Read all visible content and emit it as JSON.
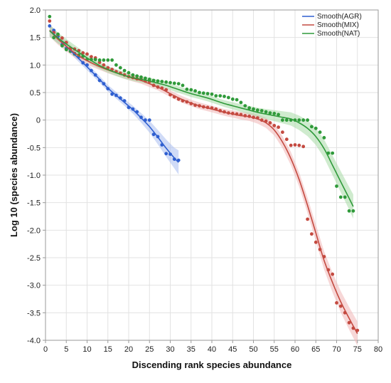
{
  "chart_data": {
    "type": "scatter",
    "xlabel": "Discending rank species abundance",
    "ylabel": "Log 10 (species abundance)",
    "xlim": [
      0,
      80
    ],
    "ylim": [
      -4.0,
      2.0
    ],
    "x_ticks": [
      0,
      5,
      10,
      15,
      20,
      25,
      30,
      35,
      40,
      45,
      50,
      55,
      60,
      65,
      70,
      75,
      80
    ],
    "y_ticks": [
      2.0,
      1.5,
      1.0,
      0.5,
      0,
      -0.5,
      -1.0,
      -1.5,
      -2.0,
      -2.5,
      -3.0,
      -3.5,
      -4.0
    ],
    "y_tick_labels": [
      "2.0",
      "1.5",
      "1.0",
      "0.5",
      "0",
      "-0.5",
      "-1.0",
      "-1.5",
      "-2.0",
      "-2.5",
      "-3.0",
      "-3.5",
      "-4.0"
    ],
    "grid": true,
    "legend_position": "top-right",
    "series": [
      {
        "name": "Smooth(AGR)",
        "color": "#2f5fd0",
        "band_color": "#a9bdf0",
        "points": [
          [
            1,
            1.71
          ],
          [
            2,
            1.63
          ],
          [
            3,
            1.52
          ],
          [
            4,
            1.37
          ],
          [
            5,
            1.3
          ],
          [
            6,
            1.3
          ],
          [
            7,
            1.21
          ],
          [
            8,
            1.15
          ],
          [
            9,
            1.04
          ],
          [
            10,
            1.0
          ],
          [
            11,
            0.9
          ],
          [
            12,
            0.82
          ],
          [
            13,
            0.72
          ],
          [
            14,
            0.66
          ],
          [
            15,
            0.57
          ],
          [
            16,
            0.47
          ],
          [
            17,
            0.45
          ],
          [
            18,
            0.4
          ],
          [
            19,
            0.35
          ],
          [
            20,
            0.23
          ],
          [
            21,
            0.2
          ],
          [
            22,
            0.15
          ],
          [
            23,
            0.05
          ],
          [
            24,
            0.0
          ],
          [
            25,
            0.0
          ],
          [
            26,
            -0.26
          ],
          [
            27,
            -0.3
          ],
          [
            28,
            -0.45
          ],
          [
            29,
            -0.61
          ],
          [
            30,
            -0.62
          ],
          [
            31,
            -0.71
          ],
          [
            32,
            -0.73
          ]
        ],
        "smooth": [
          [
            1,
            1.63
          ],
          [
            3,
            1.49
          ],
          [
            5,
            1.34
          ],
          [
            7,
            1.19
          ],
          [
            9,
            1.04
          ],
          [
            11,
            0.89
          ],
          [
            13,
            0.74
          ],
          [
            15,
            0.58
          ],
          [
            17,
            0.45
          ],
          [
            19,
            0.32
          ],
          [
            21,
            0.19
          ],
          [
            23,
            0.04
          ],
          [
            25,
            -0.12
          ],
          [
            27,
            -0.31
          ],
          [
            29,
            -0.51
          ],
          [
            31,
            -0.69
          ],
          [
            32,
            -0.77
          ]
        ]
      },
      {
        "name": "Smooth(MIX)",
        "color": "#c44a40",
        "band_color": "#f0b6b6",
        "points": [
          [
            1,
            1.8
          ],
          [
            2,
            1.59
          ],
          [
            3,
            1.55
          ],
          [
            4,
            1.49
          ],
          [
            5,
            1.41
          ],
          [
            6,
            1.3
          ],
          [
            7,
            1.29
          ],
          [
            8,
            1.26
          ],
          [
            9,
            1.22
          ],
          [
            10,
            1.2
          ],
          [
            11,
            1.15
          ],
          [
            12,
            1.13
          ],
          [
            13,
            1.05
          ],
          [
            14,
            1.0
          ],
          [
            15,
            0.95
          ],
          [
            16,
            0.92
          ],
          [
            17,
            0.88
          ],
          [
            18,
            0.85
          ],
          [
            19,
            0.82
          ],
          [
            20,
            0.79
          ],
          [
            21,
            0.77
          ],
          [
            22,
            0.75
          ],
          [
            23,
            0.74
          ],
          [
            24,
            0.71
          ],
          [
            25,
            0.7
          ],
          [
            26,
            0.63
          ],
          [
            27,
            0.6
          ],
          [
            28,
            0.58
          ],
          [
            29,
            0.55
          ],
          [
            30,
            0.46
          ],
          [
            31,
            0.42
          ],
          [
            32,
            0.38
          ],
          [
            33,
            0.35
          ],
          [
            34,
            0.33
          ],
          [
            35,
            0.3
          ],
          [
            36,
            0.27
          ],
          [
            37,
            0.26
          ],
          [
            38,
            0.24
          ],
          [
            39,
            0.23
          ],
          [
            40,
            0.22
          ],
          [
            41,
            0.2
          ],
          [
            42,
            0.17
          ],
          [
            43,
            0.15
          ],
          [
            44,
            0.13
          ],
          [
            45,
            0.12
          ],
          [
            46,
            0.11
          ],
          [
            47,
            0.1
          ],
          [
            48,
            0.08
          ],
          [
            49,
            0.07
          ],
          [
            50,
            0.05
          ],
          [
            51,
            0.04
          ],
          [
            52,
            0.0
          ],
          [
            53,
            -0.02
          ],
          [
            54,
            -0.05
          ],
          [
            55,
            -0.1
          ],
          [
            56,
            -0.13
          ],
          [
            57,
            -0.22
          ],
          [
            58,
            -0.35
          ],
          [
            59,
            -0.46
          ],
          [
            60,
            -0.45
          ],
          [
            61,
            -0.46
          ],
          [
            62,
            -0.48
          ],
          [
            63,
            -1.8
          ],
          [
            64,
            -2.07
          ],
          [
            65,
            -2.22
          ],
          [
            66,
            -2.35
          ],
          [
            67,
            -2.48
          ],
          [
            68,
            -2.72
          ],
          [
            69,
            -2.8
          ],
          [
            70,
            -3.32
          ],
          [
            71,
            -3.38
          ],
          [
            72,
            -3.5
          ],
          [
            73,
            -3.68
          ],
          [
            74,
            -3.78
          ],
          [
            75,
            -3.82
          ]
        ],
        "smooth": [
          [
            1,
            1.63
          ],
          [
            3,
            1.47
          ],
          [
            5,
            1.34
          ],
          [
            7,
            1.22
          ],
          [
            9,
            1.12
          ],
          [
            11,
            1.04
          ],
          [
            13,
            0.97
          ],
          [
            15,
            0.91
          ],
          [
            17,
            0.86
          ],
          [
            19,
            0.81
          ],
          [
            21,
            0.76
          ],
          [
            23,
            0.72
          ],
          [
            25,
            0.66
          ],
          [
            27,
            0.6
          ],
          [
            29,
            0.52
          ],
          [
            31,
            0.44
          ],
          [
            33,
            0.37
          ],
          [
            35,
            0.31
          ],
          [
            37,
            0.26
          ],
          [
            39,
            0.22
          ],
          [
            41,
            0.18
          ],
          [
            43,
            0.14
          ],
          [
            45,
            0.11
          ],
          [
            47,
            0.08
          ],
          [
            49,
            0.06
          ],
          [
            51,
            0.02
          ],
          [
            53,
            -0.05
          ],
          [
            55,
            -0.18
          ],
          [
            57,
            -0.4
          ],
          [
            59,
            -0.7
          ],
          [
            61,
            -1.08
          ],
          [
            63,
            -1.55
          ],
          [
            65,
            -2.05
          ],
          [
            67,
            -2.55
          ],
          [
            69,
            -2.95
          ],
          [
            71,
            -3.3
          ],
          [
            73,
            -3.6
          ],
          [
            75,
            -3.88
          ]
        ]
      },
      {
        "name": "Smooth(NAT)",
        "color": "#2f9a3a",
        "band_color": "#a8dba5",
        "points": [
          [
            1,
            1.88
          ],
          [
            2,
            1.5
          ],
          [
            3,
            1.56
          ],
          [
            4,
            1.35
          ],
          [
            5,
            1.28
          ],
          [
            6,
            1.25
          ],
          [
            7,
            1.2
          ],
          [
            8,
            1.18
          ],
          [
            9,
            1.16
          ],
          [
            10,
            1.1
          ],
          [
            11,
            1.1
          ],
          [
            12,
            1.1
          ],
          [
            13,
            1.09
          ],
          [
            14,
            1.09
          ],
          [
            15,
            1.09
          ],
          [
            16,
            1.09
          ],
          [
            17,
            1.0
          ],
          [
            18,
            0.95
          ],
          [
            19,
            0.9
          ],
          [
            20,
            0.86
          ],
          [
            21,
            0.82
          ],
          [
            22,
            0.8
          ],
          [
            23,
            0.78
          ],
          [
            24,
            0.76
          ],
          [
            25,
            0.74
          ],
          [
            26,
            0.72
          ],
          [
            27,
            0.71
          ],
          [
            28,
            0.7
          ],
          [
            29,
            0.69
          ],
          [
            30,
            0.68
          ],
          [
            31,
            0.67
          ],
          [
            32,
            0.66
          ],
          [
            33,
            0.63
          ],
          [
            34,
            0.56
          ],
          [
            35,
            0.55
          ],
          [
            36,
            0.53
          ],
          [
            37,
            0.5
          ],
          [
            38,
            0.49
          ],
          [
            39,
            0.48
          ],
          [
            40,
            0.47
          ],
          [
            41,
            0.44
          ],
          [
            42,
            0.44
          ],
          [
            43,
            0.43
          ],
          [
            44,
            0.41
          ],
          [
            45,
            0.38
          ],
          [
            46,
            0.37
          ],
          [
            47,
            0.32
          ],
          [
            48,
            0.26
          ],
          [
            49,
            0.22
          ],
          [
            50,
            0.2
          ],
          [
            51,
            0.18
          ],
          [
            52,
            0.17
          ],
          [
            53,
            0.15
          ],
          [
            54,
            0.13
          ],
          [
            55,
            0.12
          ],
          [
            56,
            0.1
          ],
          [
            57,
            0.0
          ],
          [
            58,
            0.0
          ],
          [
            59,
            0.0
          ],
          [
            60,
            0.0
          ],
          [
            61,
            0.0
          ],
          [
            62,
            0.0
          ],
          [
            63,
            0.0
          ],
          [
            64,
            -0.12
          ],
          [
            65,
            -0.15
          ],
          [
            66,
            -0.22
          ],
          [
            67,
            -0.32
          ],
          [
            68,
            -0.6
          ],
          [
            69,
            -0.6
          ],
          [
            70,
            -1.2
          ],
          [
            71,
            -1.4
          ],
          [
            72,
            -1.4
          ],
          [
            73,
            -1.65
          ],
          [
            74,
            -1.65
          ]
        ],
        "smooth": [
          [
            1,
            1.62
          ],
          [
            3,
            1.49
          ],
          [
            5,
            1.38
          ],
          [
            7,
            1.28
          ],
          [
            9,
            1.18
          ],
          [
            11,
            1.08
          ],
          [
            13,
            0.99
          ],
          [
            15,
            0.92
          ],
          [
            17,
            0.86
          ],
          [
            19,
            0.81
          ],
          [
            21,
            0.77
          ],
          [
            23,
            0.74
          ],
          [
            25,
            0.71
          ],
          [
            27,
            0.67
          ],
          [
            29,
            0.63
          ],
          [
            31,
            0.58
          ],
          [
            33,
            0.53
          ],
          [
            35,
            0.48
          ],
          [
            37,
            0.44
          ],
          [
            39,
            0.4
          ],
          [
            41,
            0.35
          ],
          [
            43,
            0.3
          ],
          [
            45,
            0.26
          ],
          [
            47,
            0.22
          ],
          [
            49,
            0.18
          ],
          [
            51,
            0.14
          ],
          [
            53,
            0.11
          ],
          [
            55,
            0.08
          ],
          [
            57,
            0.05
          ],
          [
            59,
            0.02
          ],
          [
            61,
            -0.05
          ],
          [
            63,
            -0.15
          ],
          [
            65,
            -0.3
          ],
          [
            67,
            -0.52
          ],
          [
            69,
            -0.82
          ],
          [
            71,
            -1.12
          ],
          [
            73,
            -1.42
          ],
          [
            74,
            -1.57
          ]
        ]
      }
    ]
  }
}
